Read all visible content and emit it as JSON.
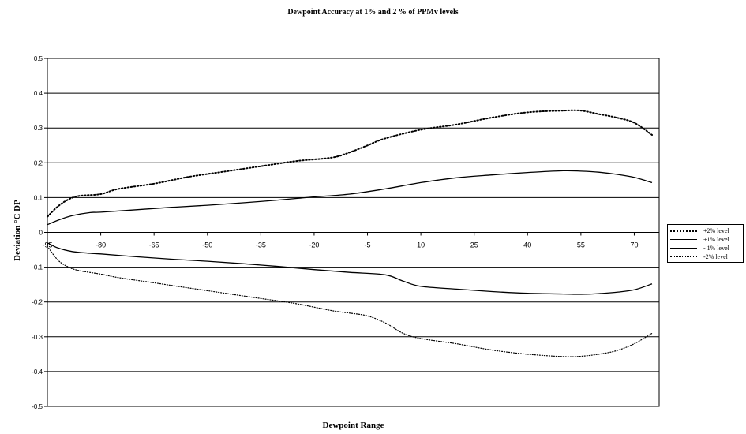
{
  "chart_data": {
    "type": "line",
    "title": "Dewpoint Accuracy at 1% and 2 % of PPMv levels",
    "xlabel": "Dewpoint Range",
    "ylabel": "Deviation °C DP",
    "x_ticks": [
      "-95",
      "-80",
      "-65",
      "-50",
      "-35",
      "-20",
      "-5",
      "10",
      "25",
      "40",
      "55",
      "70"
    ],
    "y_ticks": [
      "0.5",
      "0.4",
      "0.3",
      "0.2",
      "0.1",
      "0",
      "-0.1",
      "-0.2",
      "-0.3",
      "-0.4",
      "-0.5"
    ],
    "xlim": [
      -95,
      77
    ],
    "ylim": [
      -0.5,
      0.5
    ],
    "grid": "horizontal",
    "legend_position": "right",
    "series": [
      {
        "name": "+2% level",
        "style": "dotted-heavy",
        "x": [
          -95,
          -92,
          -89,
          -86,
          -80,
          -75,
          -65,
          -55,
          -45,
          -35,
          -25,
          -15,
          -10,
          -5,
          0,
          10,
          20,
          30,
          40,
          50,
          55,
          60,
          65,
          70,
          75
        ],
        "y": [
          0.045,
          0.075,
          0.095,
          0.105,
          0.11,
          0.125,
          0.14,
          0.16,
          0.175,
          0.19,
          0.205,
          0.215,
          0.23,
          0.25,
          0.27,
          0.295,
          0.31,
          0.33,
          0.345,
          0.35,
          0.35,
          0.34,
          0.33,
          0.315,
          0.28
        ]
      },
      {
        "name": "+1% level",
        "style": "solid",
        "x": [
          -95,
          -92,
          -88,
          -83,
          -80,
          -70,
          -60,
          -50,
          -40,
          -30,
          -20,
          -10,
          0,
          10,
          20,
          30,
          40,
          50,
          55,
          60,
          65,
          70,
          75
        ],
        "y": [
          0.022,
          0.035,
          0.048,
          0.057,
          0.058,
          0.065,
          0.072,
          0.078,
          0.085,
          0.093,
          0.102,
          0.11,
          0.125,
          0.143,
          0.157,
          0.165,
          0.172,
          0.177,
          0.176,
          0.173,
          0.167,
          0.158,
          0.143
        ]
      },
      {
        "name": "- 1% level",
        "style": "solid",
        "x": [
          -95,
          -92,
          -88,
          -83,
          -80,
          -70,
          -60,
          -50,
          -40,
          -30,
          -20,
          -10,
          0,
          5,
          10,
          20,
          30,
          40,
          50,
          55,
          60,
          65,
          70,
          75
        ],
        "y": [
          -0.03,
          -0.045,
          -0.055,
          -0.06,
          -0.062,
          -0.07,
          -0.077,
          -0.083,
          -0.09,
          -0.098,
          -0.107,
          -0.115,
          -0.122,
          -0.14,
          -0.155,
          -0.163,
          -0.17,
          -0.175,
          -0.177,
          -0.178,
          -0.176,
          -0.172,
          -0.165,
          -0.148
        ]
      },
      {
        "name": "-2% level",
        "style": "dotted-light",
        "x": [
          -95,
          -92,
          -89,
          -86,
          -80,
          -75,
          -65,
          -55,
          -45,
          -35,
          -25,
          -15,
          -10,
          -5,
          0,
          5,
          10,
          20,
          30,
          40,
          50,
          55,
          60,
          65,
          70,
          75
        ],
        "y": [
          -0.04,
          -0.08,
          -0.1,
          -0.11,
          -0.12,
          -0.13,
          -0.145,
          -0.16,
          -0.175,
          -0.19,
          -0.205,
          -0.225,
          -0.232,
          -0.24,
          -0.26,
          -0.29,
          -0.305,
          -0.32,
          -0.338,
          -0.35,
          -0.357,
          -0.356,
          -0.35,
          -0.34,
          -0.32,
          -0.29
        ]
      }
    ]
  },
  "legend": {
    "items": [
      "+2% level",
      "+1% level",
      "- 1% level",
      "-2% level"
    ]
  }
}
